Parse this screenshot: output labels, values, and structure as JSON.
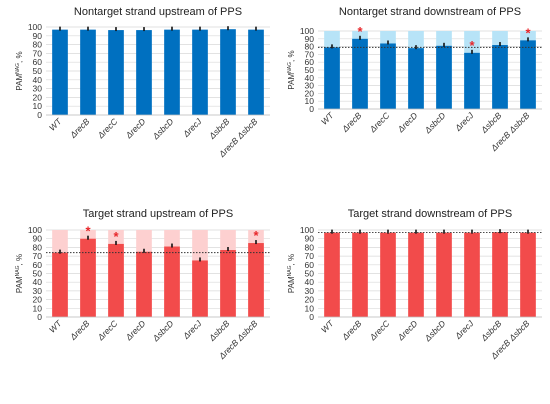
{
  "chart_data": [
    {
      "type": "bar",
      "title": "Nontarget strand upstream of PPS",
      "ylabel": "PAM",
      "ylabel_sup": "NAG",
      "ylabel_suffix": ", %",
      "ylim": [
        0,
        100
      ],
      "yticks": [
        "0",
        "10",
        "20",
        "30",
        "40",
        "50",
        "60",
        "70",
        "80",
        "90",
        "100"
      ],
      "categories": [
        "WT",
        "ΔrecB",
        "ΔrecC",
        "ΔrecD",
        "ΔsbcD",
        "ΔrecJ",
        "ΔsbcB",
        "ΔrecB ΔsbcB"
      ],
      "values": [
        97,
        97,
        96.5,
        96.5,
        97,
        97,
        97.5,
        97
      ],
      "significant": [
        false,
        false,
        false,
        false,
        false,
        false,
        false,
        false
      ],
      "reference_line": null,
      "background": false,
      "bar_color": "#0070c0",
      "bg_color": "#b7e3f7"
    },
    {
      "type": "bar",
      "title": "Nontarget strand downstream of PPS",
      "ylabel": "PAM",
      "ylabel_sup": "NAG",
      "ylabel_suffix": ", %",
      "ylim": [
        0,
        100
      ],
      "yticks": [
        "0",
        "10",
        "20",
        "30",
        "40",
        "50",
        "60",
        "70",
        "80",
        "90",
        "100"
      ],
      "categories": [
        "WT",
        "ΔrecB",
        "ΔrecC",
        "ΔrecD",
        "ΔsbcD",
        "ΔrecJ",
        "ΔsbcB",
        "ΔrecB ΔsbcB"
      ],
      "values": [
        79,
        90,
        84,
        78,
        81,
        72,
        82,
        88
      ],
      "significant": [
        false,
        true,
        false,
        false,
        false,
        true,
        false,
        true
      ],
      "reference_line": 79,
      "background": true,
      "bar_color": "#0070c0",
      "bg_color": "#b7e3f7"
    },
    {
      "type": "bar",
      "title": "Target strand upstream of PPS",
      "ylabel": "PAM",
      "ylabel_sup": "NAG",
      "ylabel_suffix": ", %",
      "ylim": [
        0,
        100
      ],
      "yticks": [
        "0",
        "10",
        "20",
        "30",
        "40",
        "50",
        "60",
        "70",
        "80",
        "90",
        "100"
      ],
      "categories": [
        "WT",
        "ΔrecB",
        "ΔrecC",
        "ΔrecD",
        "ΔsbcD",
        "ΔrecJ",
        "ΔsbcB",
        "ΔrecB ΔsbcB"
      ],
      "values": [
        74,
        90,
        84,
        75,
        81,
        65,
        77,
        85
      ],
      "significant": [
        false,
        true,
        true,
        false,
        false,
        false,
        false,
        true
      ],
      "reference_line": 74,
      "background": true,
      "bar_color": "#f24b4b",
      "bg_color": "#fdd0d0"
    },
    {
      "type": "bar",
      "title": "Target strand downstream of PPS",
      "ylabel": "PAM",
      "ylabel_sup": "NAG",
      "ylabel_suffix": ", %",
      "ylim": [
        0,
        100
      ],
      "yticks": [
        "0",
        "10",
        "20",
        "30",
        "40",
        "50",
        "60",
        "70",
        "80",
        "90",
        "100"
      ],
      "categories": [
        "WT",
        "ΔrecB",
        "ΔrecC",
        "ΔrecD",
        "ΔsbcD",
        "ΔrecJ",
        "ΔsbcB",
        "ΔrecB ΔsbcB"
      ],
      "values": [
        97,
        97,
        97,
        97,
        97,
        97,
        97.5,
        97
      ],
      "significant": [
        false,
        false,
        false,
        false,
        false,
        false,
        false,
        false
      ],
      "reference_line": 97,
      "background": false,
      "bar_color": "#f24b4b",
      "bg_color": "#fdd0d0"
    }
  ],
  "marker_text": "*"
}
